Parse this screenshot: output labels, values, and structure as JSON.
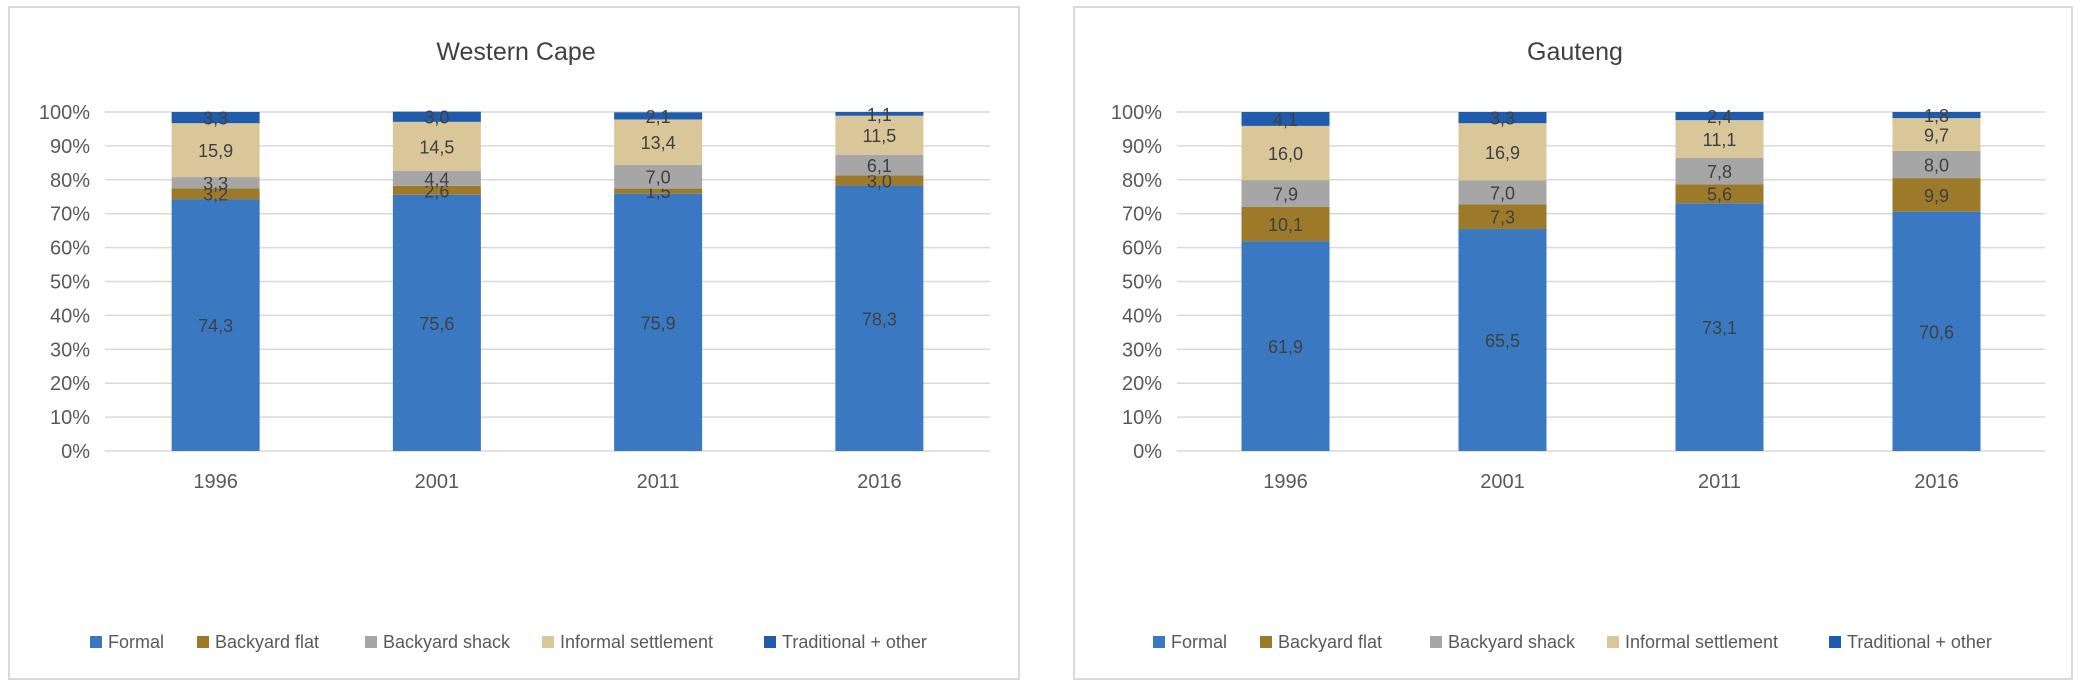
{
  "series_names": [
    "Formal",
    "Backyard flat",
    "Backyard shack",
    "Informal settlement",
    "Traditional + other"
  ],
  "series_colors": [
    "#3a78c2",
    "#9c7a2a",
    "#a6a6a6",
    "#d9c79a",
    "#1f5cad"
  ],
  "chart_data": [
    {
      "type": "bar",
      "stacked": true,
      "title": "Western Cape",
      "categories": [
        "1996",
        "2001",
        "2011",
        "2016"
      ],
      "y_ticks": [
        "0%",
        "10%",
        "20%",
        "30%",
        "40%",
        "50%",
        "60%",
        "70%",
        "80%",
        "90%",
        "100%"
      ],
      "ylim": [
        0,
        100
      ],
      "legend": "bottom",
      "series": [
        {
          "name": "Formal",
          "values": [
            74.3,
            75.6,
            75.9,
            78.3
          ],
          "labels": [
            "74,3",
            "75,6",
            "75,9",
            "78,3"
          ]
        },
        {
          "name": "Backyard flat",
          "values": [
            3.2,
            2.6,
            1.5,
            3.0
          ],
          "labels": [
            "3,2",
            "2,6",
            "1,5",
            "3,0"
          ]
        },
        {
          "name": "Backyard shack",
          "values": [
            3.3,
            4.4,
            7.0,
            6.1
          ],
          "labels": [
            "3,3",
            "4,4",
            "7,0",
            "6,1"
          ]
        },
        {
          "name": "Informal settlement",
          "values": [
            15.9,
            14.5,
            13.4,
            11.5
          ],
          "labels": [
            "15,9",
            "14,5",
            "13,4",
            "11,5"
          ]
        },
        {
          "name": "Traditional + other",
          "values": [
            3.3,
            3.0,
            2.1,
            1.1
          ],
          "labels": [
            "3,3",
            "3,0",
            "2,1",
            "1,1"
          ]
        }
      ]
    },
    {
      "type": "bar",
      "stacked": true,
      "title": "Gauteng",
      "categories": [
        "1996",
        "2001",
        "2011",
        "2016"
      ],
      "y_ticks": [
        "0%",
        "10%",
        "20%",
        "30%",
        "40%",
        "50%",
        "60%",
        "70%",
        "80%",
        "90%",
        "100%"
      ],
      "ylim": [
        0,
        100
      ],
      "legend": "bottom",
      "series": [
        {
          "name": "Formal",
          "values": [
            61.9,
            65.5,
            73.1,
            70.6
          ],
          "labels": [
            "61,9",
            "65,5",
            "73,1",
            "70,6"
          ]
        },
        {
          "name": "Backyard flat",
          "values": [
            10.1,
            7.3,
            5.6,
            9.9
          ],
          "labels": [
            "10,1",
            "7,3",
            "5,6",
            "9,9"
          ]
        },
        {
          "name": "Backyard shack",
          "values": [
            7.9,
            7.0,
            7.8,
            8.0
          ],
          "labels": [
            "7,9",
            "7,0",
            "7,8",
            "8,0"
          ]
        },
        {
          "name": "Informal settlement",
          "values": [
            16.0,
            16.9,
            11.1,
            9.7
          ],
          "labels": [
            "16,0",
            "16,9",
            "11,1",
            "9,7"
          ]
        },
        {
          "name": "Traditional + other",
          "values": [
            4.1,
            3.3,
            2.4,
            1.8
          ],
          "labels": [
            "4,1",
            "3,3",
            "2,4",
            "1,8"
          ]
        }
      ]
    }
  ]
}
